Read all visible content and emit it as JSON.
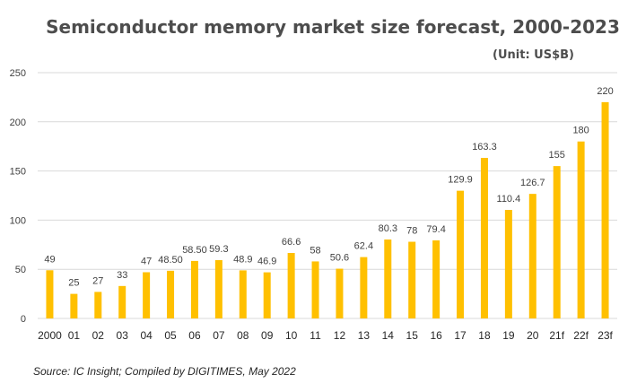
{
  "chart_data": {
    "type": "bar",
    "title": "Semiconductor memory market size forecast, 2000-2023",
    "unit": "(Unit: US$B)",
    "source": "Source: IC Insight; Compiled by DIGITIMES, May 2022",
    "categories": [
      "2000",
      "01",
      "02",
      "03",
      "04",
      "05",
      "06",
      "07",
      "08",
      "09",
      "10",
      "11",
      "12",
      "13",
      "14",
      "15",
      "16",
      "17",
      "18",
      "19",
      "20",
      "21f",
      "22f",
      "23f"
    ],
    "values": [
      49,
      25,
      27,
      33,
      47,
      48.5,
      58.5,
      59.3,
      48.9,
      46.9,
      66.6,
      58,
      50.6,
      62.4,
      80.3,
      78,
      79.4,
      129.9,
      163.3,
      110.4,
      126.7,
      155,
      180,
      220
    ],
    "value_labels": [
      "49",
      "25",
      "27",
      "33",
      "47",
      "48.50",
      "58.50",
      "59.3",
      "48.9",
      "46.9",
      "66.6",
      "58",
      "50.6",
      "62.4",
      "80.3",
      "78",
      "79.4",
      "129.9",
      "163.3",
      "110.4",
      "126.7",
      "155",
      "180",
      "220"
    ],
    "ylim": [
      0,
      250
    ],
    "yticks": [
      "0",
      "50",
      "100",
      "150",
      "200",
      "250"
    ],
    "xlabel": "",
    "ylabel": "",
    "grid": true,
    "legend": "none",
    "colors": {
      "bar": "#ffc000",
      "title": "#4d4d4d",
      "grid": "#d9d9d9"
    }
  }
}
